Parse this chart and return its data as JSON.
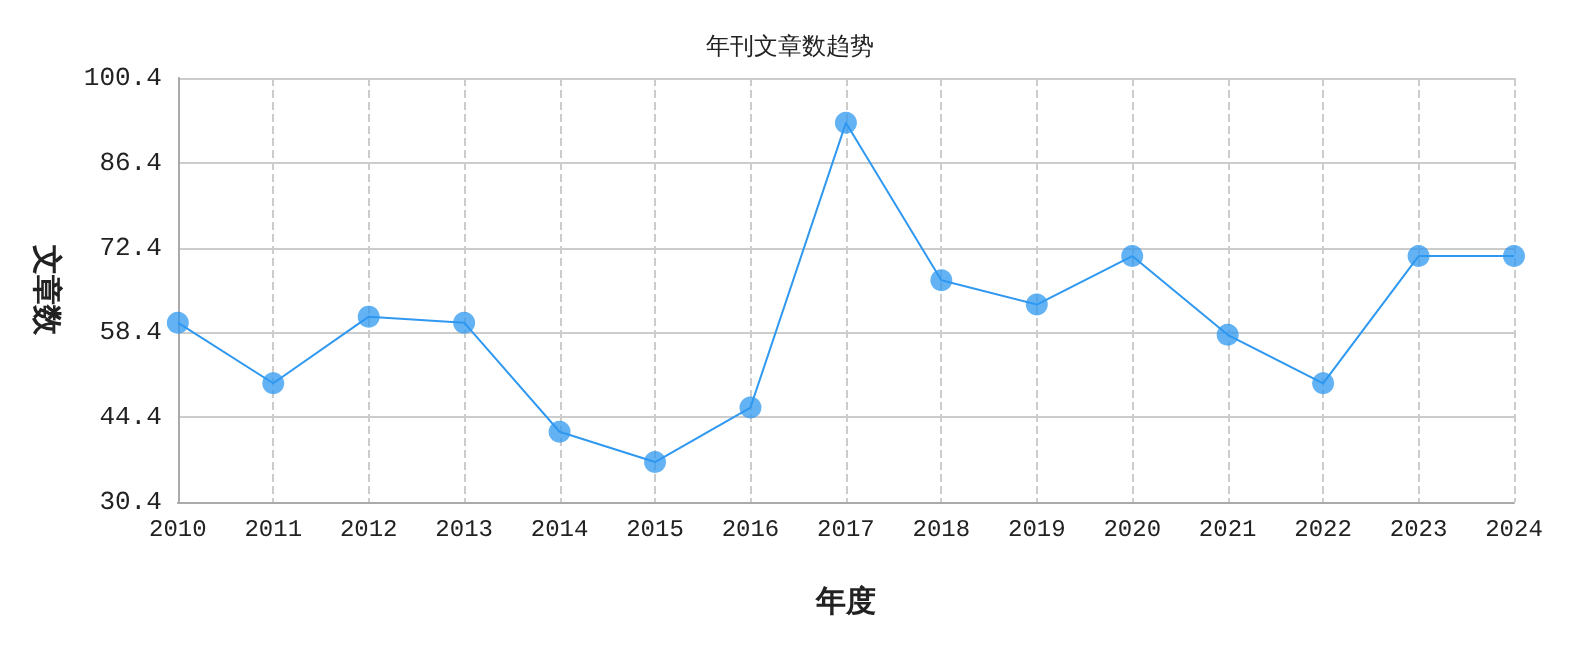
{
  "chart_data": {
    "type": "line",
    "title": "年刊文章数趋势",
    "xlabel": "年度",
    "ylabel": "文章数",
    "categories": [
      "2010",
      "2011",
      "2012",
      "2013",
      "2014",
      "2015",
      "2016",
      "2017",
      "2018",
      "2019",
      "2020",
      "2021",
      "2022",
      "2023",
      "2024"
    ],
    "series": [
      {
        "color": "#2f98f0",
        "values": [
          60,
          50,
          61,
          60,
          42,
          37,
          46,
          93,
          67,
          63,
          71,
          58,
          50,
          71,
          71
        ]
      }
    ],
    "ylim": [
      30.4,
      100.4
    ],
    "yticks": [
      30.4,
      44.4,
      58.4,
      72.4,
      86.4,
      100.4
    ],
    "grid": true,
    "marker": "circle",
    "line_style": "solid"
  }
}
